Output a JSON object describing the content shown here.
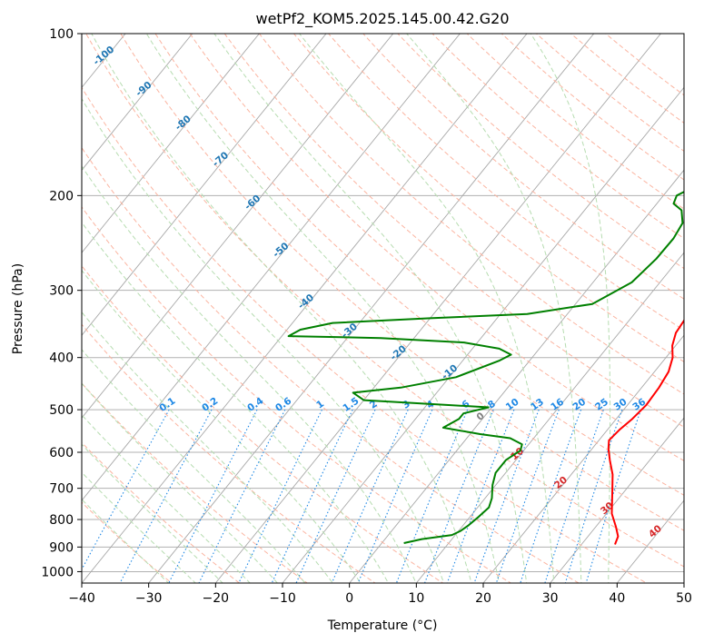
{
  "chart_data": {
    "type": "line",
    "title": "wetPf2_KOM5.2025.145.00.42.G20",
    "xlabel": "Temperature (°C)",
    "ylabel": "Pressure (hPa)",
    "xlim": [
      -40,
      50
    ],
    "ylim": [
      1050,
      100
    ],
    "y_scale": "log",
    "x_ticks": [
      -40,
      -30,
      -20,
      -10,
      0,
      10,
      20,
      30,
      40,
      50
    ],
    "x_tick_labels": [
      "−40",
      "−30",
      "−20",
      "−10",
      "0",
      "10",
      "20",
      "30",
      "40",
      "50"
    ],
    "y_ticks": [
      1000,
      900,
      800,
      700,
      600,
      500,
      400,
      300,
      200,
      100
    ],
    "y_tick_labels": [
      "1000",
      "900",
      "800",
      "700",
      "600",
      "500",
      "400",
      "300",
      "200",
      "100"
    ],
    "grid": true,
    "skew_label_text": [
      "-100",
      "-90",
      "-80",
      "-70",
      "-60",
      "-50",
      "-40",
      "-30",
      "-20",
      "-10"
    ],
    "mixing_ratio_labels": [
      "0.1",
      "0.2",
      "0.4",
      "0.6",
      "1",
      "1.5",
      "2",
      "3",
      "4",
      "6",
      "8",
      "10",
      "13",
      "16",
      "20",
      "25",
      "30",
      "36"
    ],
    "dry_adiabat_labels": [
      "0",
      "10",
      "20",
      "30",
      "40"
    ],
    "colors": {
      "temperature": "#ff0000",
      "dewpoint": "#008000",
      "isotherm_labels": "#1f77b4",
      "mixing_ratio": "#1e88e5",
      "dry_adiabat_labels": "#d62728",
      "dry_adiabat_zero": "#808080"
    },
    "series": [
      {
        "key": "temperature",
        "x": [
          35.0,
          34.5,
          33.0,
          30.8,
          28.6,
          26.2,
          24.0,
          22.4,
          21.5,
          21.8,
          22.4,
          22.8,
          22.6,
          22.1,
          21.0,
          19.5,
          18.5,
          18.2,
          17.8,
          17.0,
          15.5,
          13.5,
          12.0,
          10.0,
          7.0,
          4.0,
          2.8,
          1.9,
          1.9,
          2.0,
          1.3,
          0.8
        ],
        "y": [
          890,
          860,
          825,
          780,
          720,
          660,
          620,
          590,
          570,
          545,
          520,
          490,
          455,
          425,
          400,
          380,
          360,
          340,
          315,
          292,
          268,
          245,
          222,
          200,
          180,
          162,
          150,
          140,
          128,
          117,
          107,
          100
        ]
      },
      {
        "key": "dewpoint",
        "x": [
          3.3,
          5.5,
          9.5,
          10.3,
          10.8,
          11.3,
          11.7,
          11.0,
          9.5,
          8.5,
          8.5,
          9.5,
          9.0,
          6.5,
          1.5,
          -4.8,
          -3.5,
          -3.5,
          -0.5,
          -20.0,
          -22.5,
          -16.0,
          -9.0,
          -4.5,
          -3.5,
          -6.0,
          -12.0,
          -25.0,
          -39.0,
          -38.0,
          -34.0,
          -20.0,
          -6.0,
          2.5,
          5.8,
          6.6,
          6.7,
          6.2,
          4.5,
          2.5,
          2.0,
          4.5,
          3.5,
          2.0,
          2.3,
          1.8,
          1.0,
          0.5,
          1.2,
          1.8,
          2.5,
          1.0
        ],
        "y": [
          885,
          870,
          855,
          840,
          820,
          790,
          760,
          730,
          690,
          655,
          620,
          595,
          580,
          565,
          555,
          540,
          520,
          508,
          495,
          480,
          465,
          455,
          435,
          405,
          395,
          385,
          375,
          368,
          365,
          355,
          345,
          338,
          332,
          318,
          290,
          262,
          240,
          225,
          213,
          207,
          200,
          188,
          178,
          170,
          152,
          140,
          130,
          122,
          115,
          110,
          103,
          100
        ]
      }
    ]
  }
}
